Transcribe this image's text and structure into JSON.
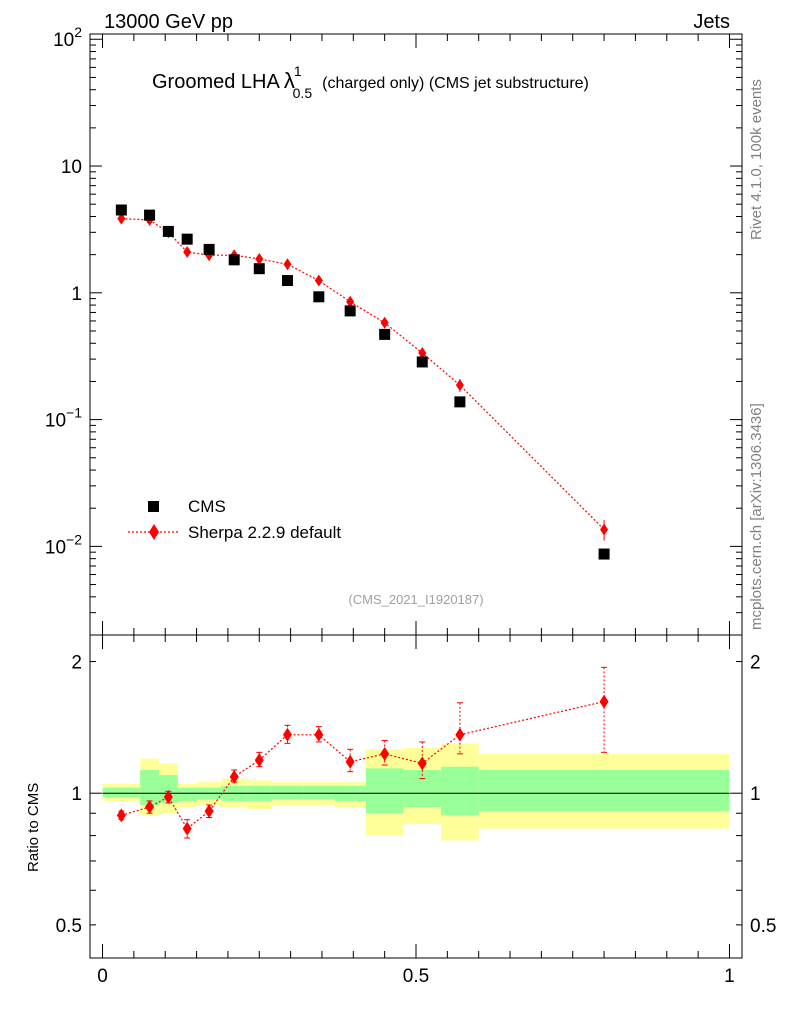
{
  "header": {
    "left": "13000 GeV pp",
    "right": "Jets"
  },
  "title": {
    "main": "Groomed LHA",
    "lambda": "λ",
    "sup": "1",
    "sub": "0.5",
    "detail": "(charged only) (CMS jet substructure)"
  },
  "watermark": "(CMS_2021_I1920187)",
  "side_labels": {
    "rivet": "Rivet 4.1.0,  100k events",
    "mcplots": "mcplots.cern.ch [arXiv:1306.3436]"
  },
  "legend": {
    "cms": "CMS",
    "mc": "Sherpa 2.2.9 default"
  },
  "colors": {
    "data": "#000000",
    "mc": "#ff0000",
    "band_inner": "#99ff99",
    "band_outer": "#ffff99"
  },
  "chart_data": [
    {
      "type": "scatter",
      "name": "main",
      "yscale": "log",
      "ylim": [
        0.002,
        110
      ],
      "xlim": [
        -0.02,
        1.02
      ],
      "y_ticks": [
        {
          "value": 100,
          "base": "10",
          "exp": "2"
        },
        {
          "value": 10,
          "label": "10"
        },
        {
          "value": 1,
          "label": "1"
        },
        {
          "value": 0.1,
          "base": "10",
          "exp": "−1"
        },
        {
          "value": 0.01,
          "base": "10",
          "exp": "−2"
        }
      ],
      "series": [
        {
          "name": "CMS",
          "x": [
            0.03,
            0.075,
            0.105,
            0.135,
            0.17,
            0.21,
            0.25,
            0.295,
            0.345,
            0.395,
            0.45,
            0.51,
            0.57,
            0.8
          ],
          "y": [
            4.5,
            4.1,
            3.05,
            2.65,
            2.2,
            1.82,
            1.55,
            1.25,
            0.93,
            0.72,
            0.47,
            0.285,
            0.138,
            0.0087
          ]
        },
        {
          "name": "Sherpa 2.2.9 default",
          "x": [
            0.03,
            0.075,
            0.105,
            0.135,
            0.17,
            0.21,
            0.25,
            0.295,
            0.345,
            0.395,
            0.45,
            0.51,
            0.57,
            0.8
          ],
          "y": [
            3.85,
            3.75,
            3.0,
            2.1,
            1.98,
            1.98,
            1.85,
            1.68,
            1.25,
            0.85,
            0.58,
            0.335,
            0.187,
            0.0136
          ],
          "err": [
            0.1,
            0.1,
            0.1,
            0.1,
            0.08,
            0.08,
            0.08,
            0.08,
            0.08,
            0.06,
            0.05,
            0.03,
            0.022,
            0.0025
          ]
        }
      ]
    },
    {
      "type": "scatter",
      "name": "ratio",
      "ylabel": "Ratio to CMS",
      "yscale": "log",
      "ylim": [
        0.42,
        2.3
      ],
      "xlim": [
        -0.02,
        1.02
      ],
      "y_ticks": [
        {
          "value": 2,
          "label": "2"
        },
        {
          "value": 1,
          "label": "1"
        },
        {
          "value": 0.5,
          "label": "0.5"
        }
      ],
      "x_ticks": [
        {
          "value": 0,
          "label": "0"
        },
        {
          "value": 0.5,
          "label": "0.5"
        },
        {
          "value": 1,
          "label": "1"
        }
      ],
      "bands": [
        {
          "x0": 0.0,
          "x1": 0.06,
          "outer": [
            0.96,
            1.05
          ],
          "inner": [
            0.98,
            1.03
          ]
        },
        {
          "x0": 0.06,
          "x1": 0.09,
          "outer": [
            0.89,
            1.2
          ],
          "inner": [
            0.94,
            1.13
          ]
        },
        {
          "x0": 0.09,
          "x1": 0.12,
          "outer": [
            0.9,
            1.17
          ],
          "inner": [
            0.95,
            1.1
          ]
        },
        {
          "x0": 0.12,
          "x1": 0.15,
          "outer": [
            0.93,
            1.05
          ],
          "inner": [
            0.96,
            1.03
          ]
        },
        {
          "x0": 0.15,
          "x1": 0.19,
          "outer": [
            0.94,
            1.06
          ],
          "inner": [
            0.97,
            1.03
          ]
        },
        {
          "x0": 0.19,
          "x1": 0.23,
          "outer": [
            0.93,
            1.08
          ],
          "inner": [
            0.96,
            1.04
          ]
        },
        {
          "x0": 0.23,
          "x1": 0.27,
          "outer": [
            0.92,
            1.07
          ],
          "inner": [
            0.96,
            1.04
          ]
        },
        {
          "x0": 0.27,
          "x1": 0.32,
          "outer": [
            0.94,
            1.06
          ],
          "inner": [
            0.97,
            1.04
          ]
        },
        {
          "x0": 0.32,
          "x1": 0.37,
          "outer": [
            0.94,
            1.06
          ],
          "inner": [
            0.97,
            1.04
          ]
        },
        {
          "x0": 0.37,
          "x1": 0.42,
          "outer": [
            0.93,
            1.06
          ],
          "inner": [
            0.96,
            1.04
          ]
        },
        {
          "x0": 0.42,
          "x1": 0.48,
          "outer": [
            0.8,
            1.26
          ],
          "inner": [
            0.9,
            1.14
          ]
        },
        {
          "x0": 0.48,
          "x1": 0.54,
          "outer": [
            0.85,
            1.27
          ],
          "inner": [
            0.93,
            1.13
          ]
        },
        {
          "x0": 0.54,
          "x1": 0.6,
          "outer": [
            0.78,
            1.3
          ],
          "inner": [
            0.89,
            1.15
          ]
        },
        {
          "x0": 0.6,
          "x1": 1.0,
          "outer": [
            0.83,
            1.23
          ],
          "inner": [
            0.91,
            1.13
          ]
        }
      ],
      "series": [
        {
          "name": "Sherpa 2.2.9 default",
          "x": [
            0.03,
            0.075,
            0.105,
            0.135,
            0.17,
            0.21,
            0.25,
            0.295,
            0.345,
            0.395,
            0.45,
            0.51,
            0.57,
            0.8
          ],
          "y": [
            0.89,
            0.93,
            0.98,
            0.83,
            0.91,
            1.09,
            1.19,
            1.36,
            1.36,
            1.18,
            1.23,
            1.17,
            1.36,
            1.62
          ],
          "err_low": [
            0.02,
            0.03,
            0.03,
            0.04,
            0.03,
            0.03,
            0.04,
            0.06,
            0.05,
            0.06,
            0.07,
            0.09,
            0.13,
            0.38
          ],
          "err_high": [
            0.02,
            0.03,
            0.03,
            0.04,
            0.03,
            0.04,
            0.05,
            0.07,
            0.06,
            0.08,
            0.09,
            0.14,
            0.25,
            0.32
          ]
        }
      ]
    }
  ]
}
